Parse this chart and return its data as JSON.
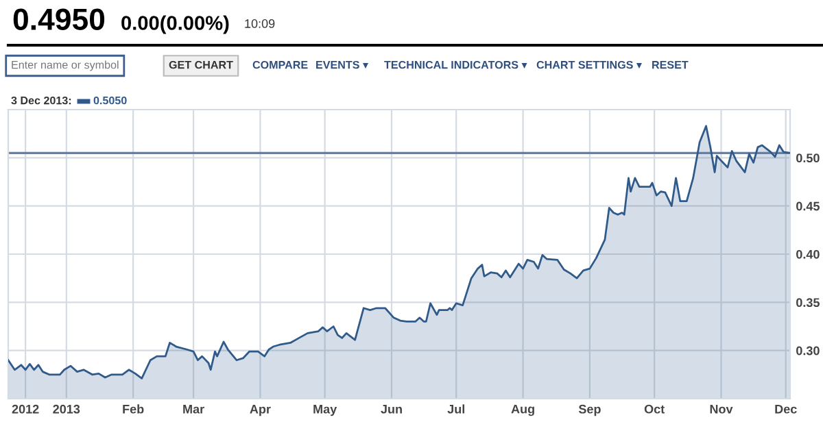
{
  "chart_data": {
    "type": "area",
    "title": "0.4950",
    "subtitle": "0.00(0.00%)",
    "annotations": [
      "10:09",
      "Enter name or symbol",
      "GET CHART",
      "COMPARE",
      "EVENTS ▾",
      "TECHNICAL INDICATORS ▾",
      "CHART SETTINGS ▾",
      "RESET",
      "3 Dec 2013:",
      "0.5050"
    ],
    "series": [
      {
        "color": "#2f5a8a",
        "x": [
          "2012-12-05",
          "2012-12-08",
          "2012-12-11",
          "2012-12-13",
          "2012-12-15",
          "2012-12-17",
          "2012-12-19",
          "2012-12-21",
          "2012-12-24",
          "2012-12-29",
          "2012-12-31",
          "2013-01-03",
          "2013-01-06",
          "2013-01-09",
          "2013-01-13",
          "2013-01-16",
          "2013-01-19",
          "2013-01-22",
          "2013-01-27",
          "2013-01-30",
          "2013-02-02",
          "2013-02-05",
          "2013-02-09",
          "2013-02-12",
          "2013-02-16",
          "2013-02-18",
          "2013-02-21",
          "2013-02-26",
          "2013-03-01",
          "2013-03-03",
          "2013-03-05",
          "2013-03-08",
          "2013-03-09",
          "2013-03-11",
          "2013-03-12",
          "2013-03-15",
          "2013-03-17",
          "2013-03-21",
          "2013-03-24",
          "2013-03-27",
          "2013-03-31",
          "2013-04-03",
          "2013-04-05",
          "2013-04-07",
          "2013-04-10",
          "2013-04-15",
          "2013-04-19",
          "2013-04-23",
          "2013-04-28",
          "2013-04-30",
          "2013-05-02",
          "2013-05-05",
          "2013-05-07",
          "2013-05-09",
          "2013-05-11",
          "2013-05-15",
          "2013-05-19",
          "2013-05-22",
          "2013-05-25",
          "2013-05-29",
          "2013-06-02",
          "2013-06-05",
          "2013-06-08",
          "2013-06-12",
          "2013-06-14",
          "2013-06-16",
          "2013-06-17",
          "2013-06-19",
          "2013-06-22",
          "2013-06-23",
          "2013-06-27",
          "2013-06-28",
          "2013-06-29",
          "2013-07-01",
          "2013-07-04",
          "2013-07-08",
          "2013-07-11",
          "2013-07-13",
          "2013-07-14",
          "2013-07-17",
          "2013-07-20",
          "2013-07-22",
          "2013-07-24",
          "2013-07-26",
          "2013-07-30",
          "2013-08-01",
          "2013-08-03",
          "2013-08-06",
          "2013-08-08",
          "2013-08-10",
          "2013-08-12",
          "2013-08-17",
          "2013-08-20",
          "2013-08-23",
          "2013-08-26",
          "2013-08-29",
          "2013-09-01",
          "2013-09-04",
          "2013-09-08",
          "2013-09-10",
          "2013-09-12",
          "2013-09-14",
          "2013-09-16",
          "2013-09-17",
          "2013-09-19",
          "2013-09-20",
          "2013-09-22",
          "2013-09-24",
          "2013-09-29",
          "2013-09-30",
          "2013-10-02",
          "2013-10-04",
          "2013-10-06",
          "2013-10-09",
          "2013-10-11",
          "2013-10-13",
          "2013-10-16",
          "2013-10-19",
          "2013-10-22",
          "2013-10-25",
          "2013-10-27",
          "2013-10-29",
          "2013-10-30",
          "2013-11-01",
          "2013-11-04",
          "2013-11-06",
          "2013-11-08",
          "2013-11-12",
          "2013-11-14",
          "2013-11-16",
          "2013-11-18",
          "2013-11-20",
          "2013-11-24",
          "2013-11-26",
          "2013-11-28",
          "2013-11-30",
          "2013-12-03"
        ],
        "values": [
          0.29,
          0.28,
          0.285,
          0.28,
          0.286,
          0.28,
          0.285,
          0.278,
          0.275,
          0.275,
          0.28,
          0.284,
          0.278,
          0.28,
          0.275,
          0.276,
          0.272,
          0.275,
          0.275,
          0.28,
          0.276,
          0.271,
          0.29,
          0.294,
          0.294,
          0.308,
          0.304,
          0.301,
          0.299,
          0.29,
          0.294,
          0.287,
          0.28,
          0.299,
          0.294,
          0.309,
          0.301,
          0.29,
          0.292,
          0.299,
          0.299,
          0.294,
          0.301,
          0.304,
          0.306,
          0.308,
          0.313,
          0.318,
          0.32,
          0.324,
          0.32,
          0.325,
          0.316,
          0.313,
          0.318,
          0.311,
          0.344,
          0.342,
          0.344,
          0.344,
          0.334,
          0.331,
          0.33,
          0.33,
          0.334,
          0.33,
          0.33,
          0.349,
          0.337,
          0.342,
          0.342,
          0.344,
          0.342,
          0.349,
          0.347,
          0.375,
          0.385,
          0.389,
          0.377,
          0.381,
          0.38,
          0.376,
          0.383,
          0.376,
          0.39,
          0.385,
          0.394,
          0.392,
          0.385,
          0.399,
          0.395,
          0.394,
          0.384,
          0.38,
          0.375,
          0.383,
          0.385,
          0.396,
          0.415,
          0.448,
          0.443,
          0.441,
          0.443,
          0.441,
          0.479,
          0.465,
          0.479,
          0.47,
          0.47,
          0.474,
          0.461,
          0.465,
          0.464,
          0.45,
          0.479,
          0.455,
          0.455,
          0.479,
          0.516,
          0.533,
          0.511,
          0.485,
          0.502,
          0.497,
          0.49,
          0.507,
          0.497,
          0.485,
          0.504,
          0.495,
          0.511,
          0.513,
          0.506,
          0.501,
          0.513,
          0.506,
          0.505
        ]
      }
    ],
    "xlim": [
      "2012-12-05",
      "2013-12-03"
    ],
    "xticks": [
      {
        "value": "2012-12-13",
        "label": "2012"
      },
      {
        "value": "2013-01-01",
        "label": "2013"
      },
      {
        "value": "2013-02-01",
        "label": "Feb"
      },
      {
        "value": "2013-03-01",
        "label": "Mar"
      },
      {
        "value": "2013-04-01",
        "label": "Apr"
      },
      {
        "value": "2013-05-01",
        "label": "May"
      },
      {
        "value": "2013-06-01",
        "label": "Jun"
      },
      {
        "value": "2013-07-01",
        "label": "Jul"
      },
      {
        "value": "2013-08-01",
        "label": "Aug"
      },
      {
        "value": "2013-09-01",
        "label": "Sep"
      },
      {
        "value": "2013-10-01",
        "label": "Oct"
      },
      {
        "value": "2013-11-01",
        "label": "Nov"
      },
      {
        "value": "2013-12-01",
        "label": "Dec"
      }
    ],
    "ylim": [
      0.25,
      0.55
    ],
    "yticks": [
      {
        "value": 0.3,
        "label": "0.30"
      },
      {
        "value": 0.35,
        "label": "0.35"
      },
      {
        "value": 0.4,
        "label": "0.40"
      },
      {
        "value": 0.45,
        "label": "0.45"
      },
      {
        "value": 0.5,
        "label": "0.50"
      }
    ],
    "ref_lines": [
      {
        "axis": "y",
        "value": 0.505,
        "color": "#6a7fa0"
      }
    ],
    "grid": true
  }
}
